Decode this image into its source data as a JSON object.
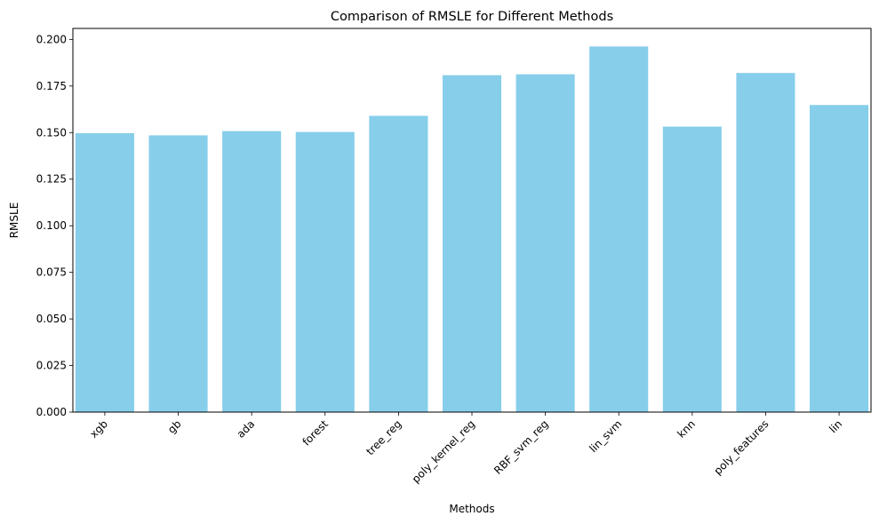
{
  "chart_data": {
    "type": "bar",
    "title": "Comparison of RMSLE for Different Methods",
    "xlabel": "Methods",
    "ylabel": "RMSLE",
    "categories": [
      "xgb",
      "gb",
      "ada",
      "forest",
      "tree_reg",
      "poly_kernel_reg",
      "RBF_svm_reg",
      "lin_svm",
      "knn",
      "poly_features",
      "lin"
    ],
    "values": [
      0.1497,
      0.1485,
      0.1508,
      0.1503,
      0.159,
      0.1808,
      0.1813,
      0.1962,
      0.1532,
      0.182,
      0.1648
    ],
    "ylim": [
      0,
      0.2059
    ],
    "yticks": [
      "0.000",
      "0.025",
      "0.050",
      "0.075",
      "0.100",
      "0.125",
      "0.150",
      "0.175",
      "0.200"
    ],
    "bar_color": "#87ceeb",
    "grid": false,
    "legend": "none"
  }
}
